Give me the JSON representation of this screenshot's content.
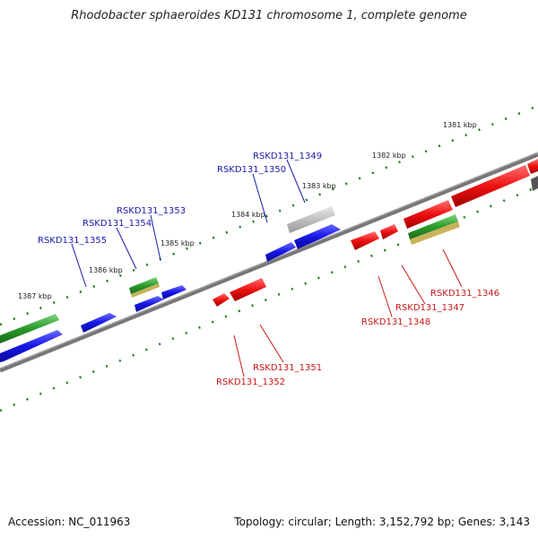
{
  "title": "Rhodobacter sphaeroides KD131 chromosome 1, complete genome",
  "footer": {
    "accession": "Accession: NC_011963",
    "summary": "Topology: circular; Length: 3,152,792 bp; Genes: 3,143"
  },
  "colors": {
    "background": "#ffffff",
    "forward_gene": "#1616e6",
    "reverse_gene": "#ee1111",
    "rna_green": "#2a9a2a",
    "rna_gold": "#c8b25a",
    "pseudo_gray": "#b8b8b8",
    "ruler": "#1f7a1f",
    "backbone": "#777777",
    "forward_label": "#1a1aa8",
    "reverse_label": "#c81818"
  },
  "kbp_markers": [
    {
      "kbp": 1381,
      "label": "1381 kbp"
    },
    {
      "kbp": 1382,
      "label": "1382 kbp"
    },
    {
      "kbp": 1383,
      "label": "1383 kbp"
    },
    {
      "kbp": 1384,
      "label": "1384 kbp"
    },
    {
      "kbp": 1385,
      "label": "1385 kbp"
    },
    {
      "kbp": 1386,
      "label": "1386 kbp"
    },
    {
      "kbp": 1387,
      "label": "1387 kbp"
    }
  ],
  "gene_labels": [
    {
      "id": "RSKD131_1349",
      "strand": "forward"
    },
    {
      "id": "RSKD131_1350",
      "strand": "forward"
    },
    {
      "id": "RSKD131_1353",
      "strand": "forward"
    },
    {
      "id": "RSKD131_1354",
      "strand": "forward"
    },
    {
      "id": "RSKD131_1355",
      "strand": "forward"
    },
    {
      "id": "RSKD131_1346",
      "strand": "reverse"
    },
    {
      "id": "RSKD131_1347",
      "strand": "reverse"
    },
    {
      "id": "RSKD131_1348",
      "strand": "reverse"
    },
    {
      "id": "RSKD131_1351",
      "strand": "reverse"
    },
    {
      "id": "RSKD131_1352",
      "strand": "reverse"
    }
  ]
}
